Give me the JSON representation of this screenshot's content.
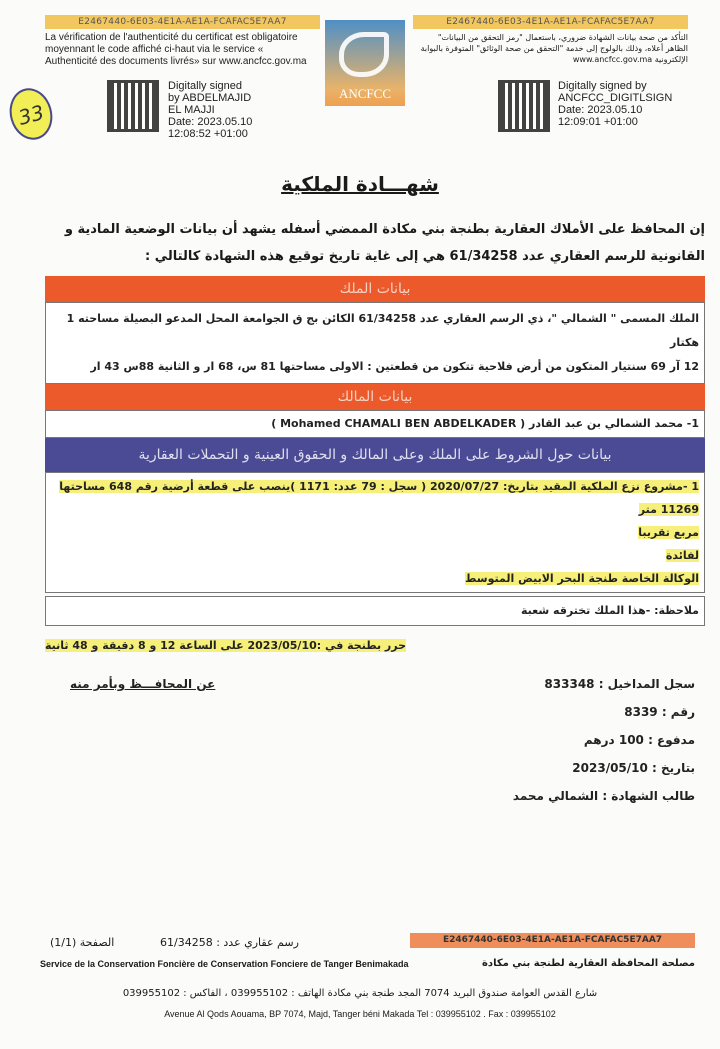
{
  "header": {
    "code": "E2467440-6E03-4E1A-AE1A-FCAFAC5E7AA7",
    "fr_notice": [
      "La vérification de l'authenticité du certificat est obligatoire",
      "moyennant le code affiché ci-haut via le service «",
      "Authenticité des documents livrés» sur www.ancfcc.gov.ma"
    ],
    "ar_notice": [
      "التأكد من صحة بيانات الشهادة ضروري، باستعمال \"رمز التحقق من البيانات\"",
      "الظاهر أعلاه، وذلك بالولوج إلى خدمة \"التحقق من صحة الوثائق\" المتوفرة بالبوابة",
      "الإلكترونية www.ancfcc.gov.ma"
    ],
    "logo_text": "ANCFCC",
    "sig_left": [
      "Digitally signed",
      "by ABDELMAJID",
      "EL MAJJI",
      "Date: 2023.05.10",
      "12:08:52 +01:00"
    ],
    "sig_right": [
      "Digitally signed by",
      "ANCFCC_DIGITLSIGN",
      "Date: 2023.05.10",
      "12:09:01 +01:00"
    ],
    "handwritten_number": "33"
  },
  "title": "شهـــادة الملكية",
  "intro": [
    "إن المحافظ على الأملاك العقارية بطنجة بني مكادة الممضي أسفله يشهد أن بيانات الوضعية المادية و",
    "القانونية للرسم العقاري عدد 61/34258 هي إلى غاية تاريخ توقيع هذه الشهادة كالتالي :"
  ],
  "sections": {
    "property_header": "بيانات الملك",
    "property_lines": [
      "الملك المسمى \" الشمالي \"، ذي الرسم العقاري عدد 61/34258 الكائن بج ق الجوامعة المحل المدعو البصيلة مساحته 1 هكتار",
      "12 آر 69 سنتيار المتكون من أرض فلاحية تتكون من قطعتين : الاولى مساحتها 81 س، 68 ار و الثانية 88س 43 ار"
    ],
    "owner_header": "بيانات المالك",
    "owner_line": "1- محمد  الشمالي  بن عبد القادر ( Mohamed CHAMALI BEN ABDELKADER )",
    "conditions_header": "بيانات حول  الشروط على الملك وعلى المالك و الحقوق العينية و التحملات العقارية",
    "conditions_lines": [
      "1 -مشروع نزع الملكية المقيد بتاريخ: 2020/07/27 ( سجل : 79 عدد: 1171 )ينصب على قطعة أرضية رقم 648 مساحتها 11269 متر",
      "مربع تقريبا",
      "لفائدة",
      "الوكالة الخاصة طنجة البحر الابيض المتوسط"
    ],
    "note": "ملاحظة:  -هذا الملك تخترقه شعبة"
  },
  "issued": "حرر   بطنجة في :2023/05/10 على الساعة 12 و 8 دقيقة  و 48 ثانية",
  "signatory": "عن المحافـــظ وبأمر منه",
  "details": [
    "سجل المداخيل : 833348",
    "رقم   : 8339",
    "مدفوع : 100 درهم",
    "بتاريخ : 2023/05/10",
    "طالب الشهادة  :  الشمالي محمد"
  ],
  "footer": {
    "code": "E2467440-6E03-4E1A-AE1A-FCAFAC5E7AA7",
    "title_ref": "رسم عقاري عدد :     61/34258",
    "page": "الصفحة (1/1)",
    "service_fr": "Service de la Conservation Foncière de Conservation Fonciere de Tanger Benimakada",
    "service_ar": "مصلحة المحافظة العقارية لطنجة بني مكادة",
    "address_ar": "شارع القدس العوامة صندوق البريد 7074 المجد طنجة بني مكادة  الهاتف : 039955102 ، الفاكس : 039955102",
    "address_fr": "Avenue Al Qods Aouama, BP 7074, Majd, Tanger béni Makada  Tel : 039955102 . Fax : 039955102"
  },
  "colors": {
    "orange": "#ec5a2c",
    "purple": "#4b4a94",
    "highlight": "#f6f07a",
    "code_bar": "#f2c760"
  }
}
